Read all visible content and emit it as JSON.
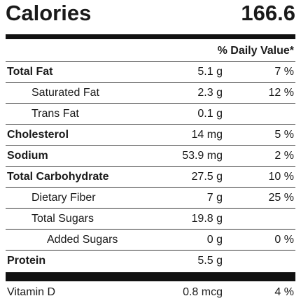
{
  "calories": {
    "label": "Calories",
    "value": "166.6"
  },
  "daily_value_header": "% Daily Value*",
  "nutrients": [
    {
      "name": "Total Fat",
      "amount": "5.1 g",
      "dv": "7 %"
    },
    {
      "name": "Saturated Fat",
      "amount": "2.3 g",
      "dv": "12 %"
    },
    {
      "name": "Trans Fat",
      "amount": "0.1 g",
      "dv": ""
    },
    {
      "name": "Cholesterol",
      "amount": "14 mg",
      "dv": "5 %"
    },
    {
      "name": "Sodium",
      "amount": "53.9 mg",
      "dv": "2 %"
    },
    {
      "name": "Total Carbohydrate",
      "amount": "27.5 g",
      "dv": "10 %"
    },
    {
      "name": "Dietary Fiber",
      "amount": "7 g",
      "dv": "25 %"
    },
    {
      "name": "Total Sugars",
      "amount": "19.8 g",
      "dv": ""
    },
    {
      "name": "Added Sugars",
      "amount": "0 g",
      "dv": "0 %"
    },
    {
      "name": "Protein",
      "amount": "5.5 g",
      "dv": ""
    }
  ],
  "vitamins": [
    {
      "name": "Vitamin D",
      "amount": "0.8 mcg",
      "dv": "4 %"
    }
  ]
}
